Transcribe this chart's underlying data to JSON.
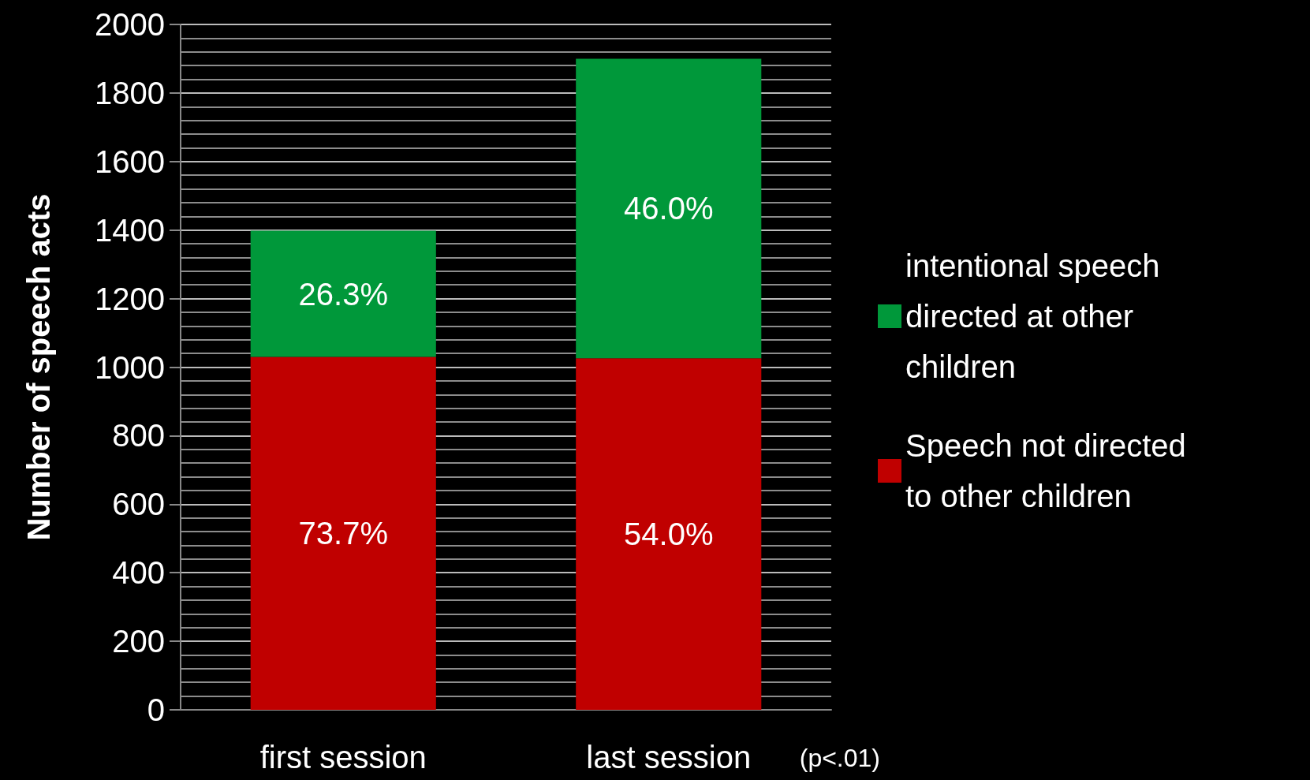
{
  "chart_data": {
    "type": "bar",
    "ylabel": "Number of speech acts",
    "categories": [
      "first session",
      "last session"
    ],
    "stacked": true,
    "ylim": [
      0,
      2000
    ],
    "yticks": [
      0,
      200,
      400,
      600,
      800,
      1000,
      1200,
      1400,
      1600,
      1800,
      2000
    ],
    "grid": "y",
    "legend": "right",
    "series": [
      {
        "name": "Speech not directed to other children",
        "color": "#c00000",
        "values": [
          1030,
          1026
        ]
      },
      {
        "name": "intentional speech directed at other children",
        "color": "#00983a",
        "values": [
          368,
          874
        ]
      }
    ],
    "annotations": [
      "73.7%",
      "54.0%",
      "26.3%",
      "46.0%",
      "(p<.01)"
    ]
  }
}
